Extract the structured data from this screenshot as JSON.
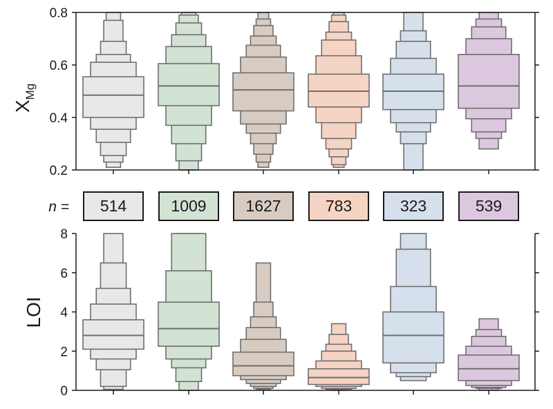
{
  "chart_data": [
    {
      "type": "boxen",
      "ylabel": "X",
      "ylabel_subscript": "Mg",
      "ylim": [
        0.2,
        0.8
      ],
      "yticks": [
        "0.2",
        "0.4",
        "0.6",
        "0.8"
      ],
      "groups": [
        {
          "color": "#e8e8e8",
          "median": 0.485,
          "boxes": [
            [
              0.4,
              0.555
            ],
            [
              0.355,
              0.61
            ],
            [
              0.305,
              0.64
            ],
            [
              0.255,
              0.69
            ],
            [
              0.23,
              0.77
            ],
            [
              0.21,
              0.8
            ]
          ]
        },
        {
          "color": "#d2e2d3",
          "median": 0.52,
          "boxes": [
            [
              0.445,
              0.605
            ],
            [
              0.37,
              0.67
            ],
            [
              0.3,
              0.715
            ],
            [
              0.235,
              0.76
            ],
            [
              0.2,
              0.79
            ],
            [
              0.2,
              0.8
            ]
          ]
        },
        {
          "color": "#d8ccc2",
          "median": 0.505,
          "boxes": [
            [
              0.425,
              0.57
            ],
            [
              0.375,
              0.63
            ],
            [
              0.34,
              0.675
            ],
            [
              0.3,
              0.71
            ],
            [
              0.26,
              0.75
            ],
            [
              0.23,
              0.775
            ],
            [
              0.21,
              0.8
            ]
          ]
        },
        {
          "color": "#f5d4c4",
          "median": 0.5,
          "boxes": [
            [
              0.44,
              0.565
            ],
            [
              0.38,
              0.635
            ],
            [
              0.32,
              0.695
            ],
            [
              0.28,
              0.725
            ],
            [
              0.25,
              0.765
            ],
            [
              0.22,
              0.79
            ],
            [
              0.21,
              0.8
            ]
          ]
        },
        {
          "color": "#d6e0ec",
          "median": 0.5,
          "boxes": [
            [
              0.43,
              0.565
            ],
            [
              0.38,
              0.625
            ],
            [
              0.345,
              0.69
            ],
            [
              0.3,
              0.73
            ],
            [
              0.2,
              0.8
            ]
          ]
        },
        {
          "color": "#dcc8de",
          "median": 0.52,
          "boxes": [
            [
              0.435,
              0.64
            ],
            [
              0.395,
              0.7
            ],
            [
              0.345,
              0.745
            ],
            [
              0.32,
              0.775
            ],
            [
              0.28,
              0.8
            ]
          ]
        }
      ]
    },
    {
      "type": "boxen",
      "ylabel": "LOI",
      "ylim": [
        0,
        8
      ],
      "yticks": [
        "0",
        "2",
        "4",
        "6",
        "8"
      ],
      "groups": [
        {
          "color": "#e8e8e8",
          "median": 2.8,
          "boxes": [
            [
              2.1,
              3.6
            ],
            [
              1.6,
              4.4
            ],
            [
              1.05,
              5.2
            ],
            [
              0.2,
              6.5
            ],
            [
              0.05,
              8.0
            ]
          ]
        },
        {
          "color": "#d2e2d3",
          "median": 3.15,
          "boxes": [
            [
              2.25,
              4.5
            ],
            [
              1.6,
              6.1
            ],
            [
              1.15,
              8.0
            ],
            [
              0.45,
              8.0
            ],
            [
              0.0,
              8.0
            ]
          ]
        },
        {
          "color": "#d8ccc2",
          "median": 1.25,
          "boxes": [
            [
              0.75,
              1.95
            ],
            [
              0.55,
              2.6
            ],
            [
              0.35,
              3.2
            ],
            [
              0.2,
              3.75
            ],
            [
              0.1,
              4.5
            ],
            [
              0.05,
              6.5
            ]
          ]
        },
        {
          "color": "#f5d4c4",
          "median": 0.65,
          "boxes": [
            [
              0.3,
              1.1
            ],
            [
              0.2,
              1.5
            ],
            [
              0.1,
              2.0
            ],
            [
              0.05,
              2.35
            ],
            [
              0.02,
              2.85
            ],
            [
              0.0,
              3.4
            ]
          ]
        },
        {
          "color": "#d6e0ec",
          "median": 2.8,
          "boxes": [
            [
              1.4,
              4.0
            ],
            [
              0.9,
              5.3
            ],
            [
              0.7,
              7.2
            ],
            [
              0.5,
              8.0
            ]
          ]
        },
        {
          "color": "#dcc8de",
          "median": 1.1,
          "boxes": [
            [
              0.5,
              1.8
            ],
            [
              0.25,
              2.25
            ],
            [
              0.15,
              2.75
            ],
            [
              0.1,
              3.1
            ],
            [
              0.0,
              3.65
            ]
          ]
        }
      ]
    }
  ],
  "counts": {
    "label": "n =",
    "values": [
      "514",
      "1009",
      "1627",
      "783",
      "323",
      "539"
    ]
  }
}
